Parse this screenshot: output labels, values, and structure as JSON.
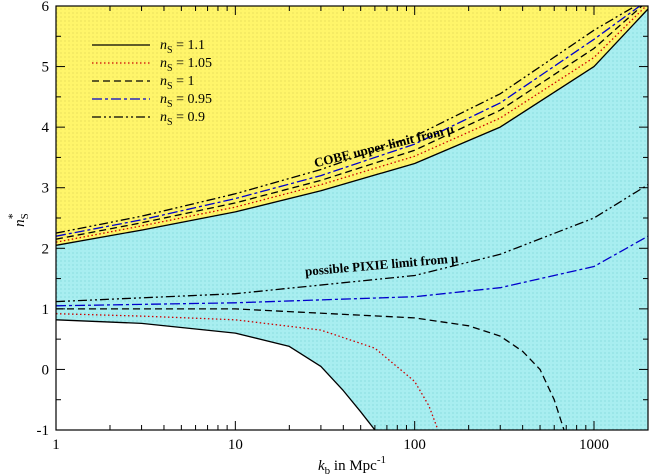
{
  "chart_data": {
    "type": "line",
    "title": "",
    "xlabel": {
      "k": "k",
      "k_sub": "b",
      "mid": " in  Mpc",
      "sup": "-1"
    },
    "ylabel": {
      "n": "n",
      "sub": "S",
      "sup": "*"
    },
    "xscale": "log",
    "xlim": [
      1,
      2000
    ],
    "ylim": [
      -1,
      6
    ],
    "x_ticks": [
      1,
      10,
      100,
      1000
    ],
    "x_tick_labels": [
      "1",
      "10",
      "100",
      "1000"
    ],
    "y_ticks": [
      -1,
      0,
      1,
      2,
      3,
      4,
      5,
      6
    ],
    "y_tick_labels": [
      "-1",
      "0",
      "1",
      "2",
      "3",
      "4",
      "5",
      "6"
    ],
    "grid": false,
    "legend_position": "top-left",
    "colors": {
      "cobe_region": "#fff56a",
      "pixie_region": "#a8eef0",
      "black": "#000000",
      "red": "#cc0000",
      "blue": "#0000cc"
    },
    "annotations": {
      "cobe": "COBE upper limit from μ",
      "pixie": "possible PIXIE limit from μ"
    },
    "series": [
      {
        "name": {
          "n": "n",
          "sub": "S",
          "rest": " = 1.1"
        },
        "color": "#000000",
        "style": "solid",
        "cobe": {
          "x": [
            1,
            3,
            10,
            30,
            100,
            300,
            1000,
            2000
          ],
          "y": [
            2.05,
            2.3,
            2.6,
            2.95,
            3.4,
            4.0,
            5.0,
            5.95
          ]
        },
        "pixie": {
          "x": [
            1,
            3,
            10,
            20,
            30,
            40,
            50,
            60
          ],
          "y": [
            0.82,
            0.76,
            0.6,
            0.38,
            0.05,
            -0.35,
            -0.7,
            -1.0
          ]
        }
      },
      {
        "name": {
          "n": "n",
          "sub": "S",
          "rest": " = 1.05"
        },
        "color": "#cc0000",
        "style": "dotted",
        "cobe": {
          "x": [
            1,
            3,
            10,
            30,
            100,
            300,
            1000,
            1950
          ],
          "y": [
            2.1,
            2.37,
            2.68,
            3.05,
            3.52,
            4.15,
            5.15,
            6.0
          ]
        },
        "pixie": {
          "x": [
            1,
            3,
            10,
            30,
            60,
            100,
            120,
            135
          ],
          "y": [
            0.92,
            0.88,
            0.82,
            0.65,
            0.35,
            -0.2,
            -0.6,
            -1.0
          ]
        }
      },
      {
        "name": {
          "n": "n",
          "sub": "S",
          "rest": " = 1"
        },
        "color": "#000000",
        "style": "dashed",
        "cobe": {
          "x": [
            1,
            3,
            10,
            30,
            100,
            300,
            1000,
            1850
          ],
          "y": [
            2.15,
            2.42,
            2.75,
            3.12,
            3.62,
            4.28,
            5.3,
            6.0
          ]
        },
        "pixie": {
          "x": [
            1,
            10,
            100,
            200,
            300,
            400,
            500,
            600,
            680
          ],
          "y": [
            1.0,
            1.0,
            0.85,
            0.72,
            0.55,
            0.3,
            0.0,
            -0.5,
            -1.0
          ]
        }
      },
      {
        "name": {
          "n": "n",
          "sub": "S",
          "rest": " = 0.95"
        },
        "color": "#0000cc",
        "style": "dashdot",
        "cobe": {
          "x": [
            1,
            3,
            10,
            30,
            100,
            300,
            1000,
            1800
          ],
          "y": [
            2.2,
            2.47,
            2.82,
            3.2,
            3.72,
            4.4,
            5.45,
            6.0
          ]
        },
        "pixie": {
          "x": [
            1,
            10,
            100,
            300,
            1000,
            2000
          ],
          "y": [
            1.05,
            1.1,
            1.2,
            1.35,
            1.7,
            2.2
          ]
        }
      },
      {
        "name": {
          "n": "n",
          "sub": "S",
          "rest": " = 0.9"
        },
        "color": "#000000",
        "style": "dashdotdot",
        "cobe": {
          "x": [
            1,
            3,
            10,
            30,
            100,
            300,
            1000,
            1700
          ],
          "y": [
            2.25,
            2.53,
            2.9,
            3.3,
            3.85,
            4.55,
            5.6,
            6.0
          ]
        },
        "pixie": {
          "x": [
            1,
            10,
            100,
            300,
            1000,
            2000
          ],
          "y": [
            1.12,
            1.25,
            1.55,
            1.9,
            2.5,
            3.05
          ]
        }
      }
    ]
  }
}
